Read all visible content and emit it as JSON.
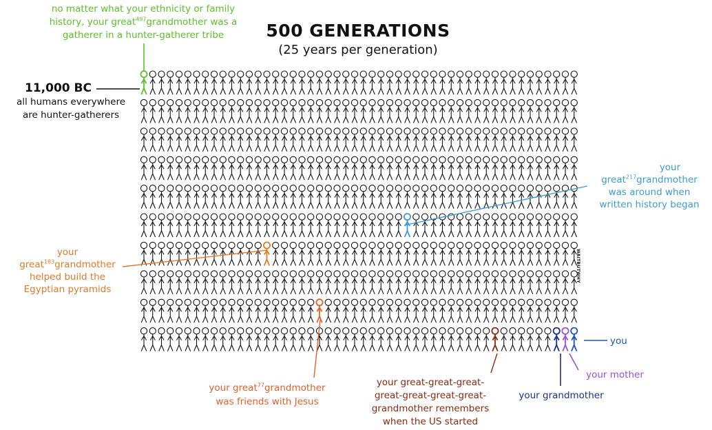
{
  "title": "500 GENERATIONS",
  "subtitle": "(25 years per generation)",
  "grid": {
    "rows": 10,
    "cols": 50,
    "total_figures": 500
  },
  "annotations": {
    "gatherer": {
      "line1": "no matter what your ethnicity or family",
      "line2_a": "history, your great",
      "line2_sup": "497",
      "line2_b": "grandmother was a",
      "line3": "gatherer in a hunter-gatherer tribe",
      "color": "#5cbf2a",
      "generation_index": 1
    },
    "bc": {
      "year": "11,000 BC",
      "line1": "all humans everywhere",
      "line2": "are hunter-gatherers"
    },
    "written_history": {
      "line1": "your",
      "line2_a": "great",
      "line2_sup": "217",
      "line2_b": "grandmother",
      "line3": "was around when",
      "line4": "written history began",
      "color": "#3d9ad6",
      "generation_index": 281
    },
    "pyramids": {
      "line1": "your",
      "line2_a": "great",
      "line2_sup": "183",
      "line2_b": "grandmother",
      "line3": "helped build the",
      "line4": "Egyptian pyramids",
      "color": "#e07a2a",
      "generation_index": 315
    },
    "jesus": {
      "line1_a": "your great",
      "line1_sup": "77",
      "line1_b": "grandmother",
      "line2": "was friends with Jesus",
      "color": "#e0622a",
      "generation_index": 421
    },
    "us_started": {
      "line1": "your great-great-great-",
      "line2": "great-great-great-great-",
      "line3": "grandmother remembers",
      "line4": "when the US started",
      "color": "#8b2a0e",
      "generation_index": 491
    },
    "grandmother": {
      "label": "your grandmother",
      "color": "#1a2f8c",
      "generation_index": 498
    },
    "mother": {
      "label": "your mother",
      "color": "#9b4fd6",
      "generation_index": 499
    },
    "you": {
      "label": "you",
      "color": "#1a55c0",
      "generation_index": 500
    }
  },
  "watermark": "WAITBUTWHY"
}
